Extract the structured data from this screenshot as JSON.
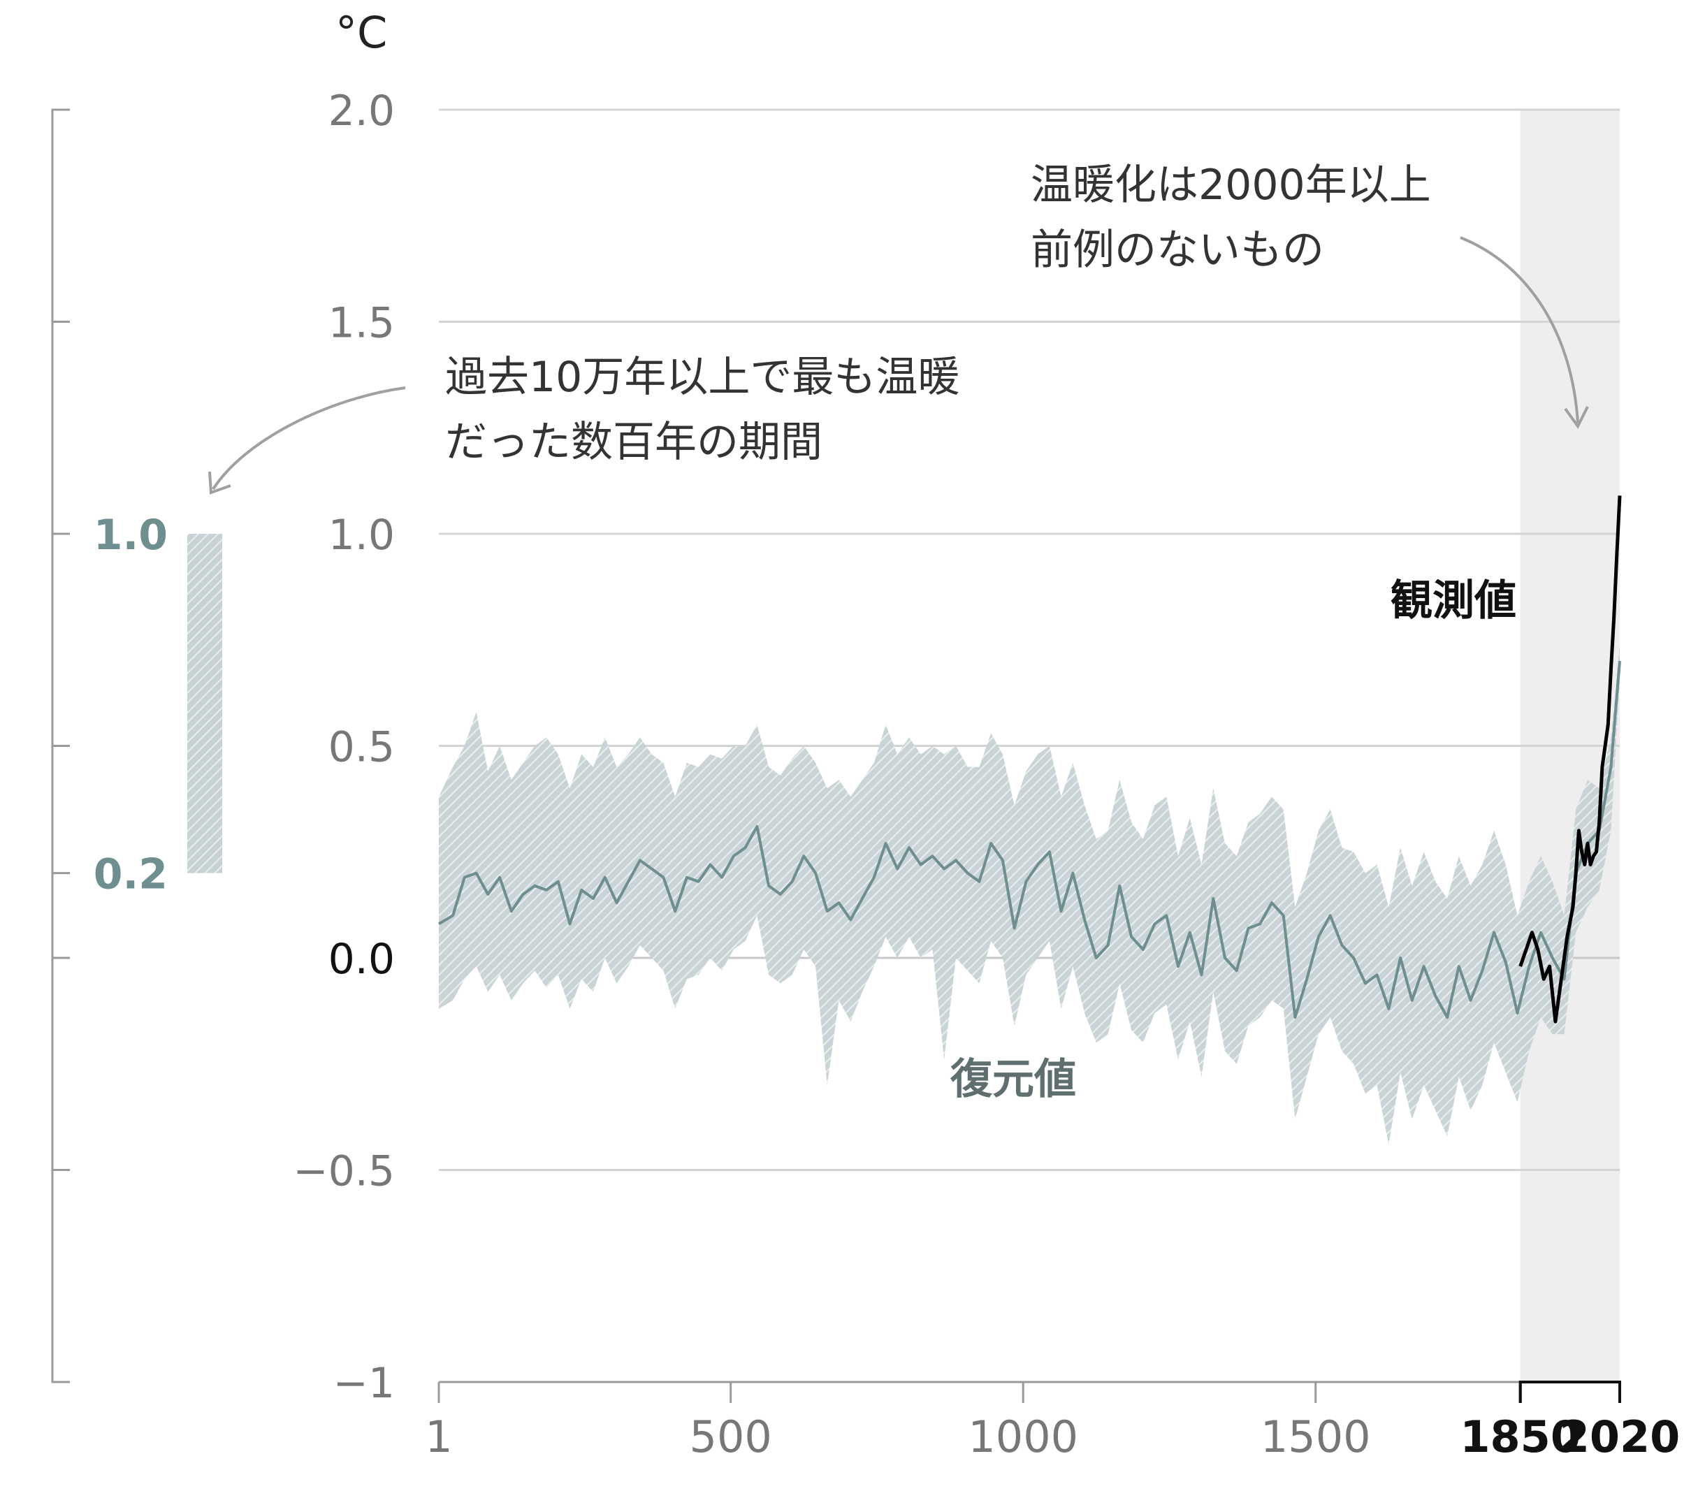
{
  "chart_data": {
    "type": "area",
    "unit_label": "°C",
    "y_ticks": [
      {
        "value": 2.0,
        "label": "2.0"
      },
      {
        "value": 1.5,
        "label": "1.5"
      },
      {
        "value": 1.0,
        "label": "1.0"
      },
      {
        "value": 0.5,
        "label": "0.5"
      },
      {
        "value": 0.0,
        "label": "0.0"
      },
      {
        "value": -0.5,
        "label": "−0.5"
      },
      {
        "value": -1.0,
        "label": "−1"
      }
    ],
    "x_ticks": [
      {
        "value": 1,
        "label": "1",
        "bold": false
      },
      {
        "value": 500,
        "label": "500",
        "bold": false
      },
      {
        "value": 1000,
        "label": "1000",
        "bold": false
      },
      {
        "value": 1500,
        "label": "1500",
        "bold": false
      },
      {
        "value": 1850,
        "label": "1850",
        "bold": true
      },
      {
        "value": 2020,
        "label": "2020",
        "bold": true
      }
    ],
    "xlim": [
      1,
      2020
    ],
    "ylim": [
      -1.0,
      2.0
    ],
    "grid": true,
    "colors": {
      "reconstruction_line": "#6e8e8f",
      "reconstruction_band": "#c2ced1",
      "band_hatch": "#a7b9bc",
      "observed_line": "#000000",
      "grid": "#d4d4d4",
      "axis": "#9a9a9a",
      "shaded_period": "#eeeeee",
      "side_bar_text": "#6e8e8f"
    },
    "shaded_period": [
      1850,
      2020
    ],
    "series": [
      {
        "name": "復元値",
        "kind": "reconstruction",
        "points": [
          [
            1,
            0.08
          ],
          [
            25,
            0.1
          ],
          [
            45,
            0.19
          ],
          [
            65,
            0.2
          ],
          [
            85,
            0.15
          ],
          [
            105,
            0.19
          ],
          [
            125,
            0.11
          ],
          [
            145,
            0.15
          ],
          [
            165,
            0.17
          ],
          [
            185,
            0.16
          ],
          [
            205,
            0.18
          ],
          [
            225,
            0.08
          ],
          [
            245,
            0.16
          ],
          [
            265,
            0.14
          ],
          [
            285,
            0.19
          ],
          [
            305,
            0.13
          ],
          [
            325,
            0.18
          ],
          [
            345,
            0.23
          ],
          [
            365,
            0.21
          ],
          [
            385,
            0.19
          ],
          [
            405,
            0.11
          ],
          [
            425,
            0.19
          ],
          [
            445,
            0.18
          ],
          [
            465,
            0.22
          ],
          [
            485,
            0.19
          ],
          [
            505,
            0.24
          ],
          [
            525,
            0.26
          ],
          [
            545,
            0.31
          ],
          [
            565,
            0.17
          ],
          [
            585,
            0.15
          ],
          [
            605,
            0.18
          ],
          [
            625,
            0.24
          ],
          [
            645,
            0.2
          ],
          [
            665,
            0.11
          ],
          [
            685,
            0.13
          ],
          [
            705,
            0.09
          ],
          [
            725,
            0.14
          ],
          [
            745,
            0.19
          ],
          [
            765,
            0.27
          ],
          [
            785,
            0.21
          ],
          [
            805,
            0.26
          ],
          [
            825,
            0.22
          ],
          [
            845,
            0.24
          ],
          [
            865,
            0.21
          ],
          [
            885,
            0.23
          ],
          [
            905,
            0.2
          ],
          [
            925,
            0.18
          ],
          [
            945,
            0.27
          ],
          [
            965,
            0.23
          ],
          [
            985,
            0.07
          ],
          [
            1005,
            0.18
          ],
          [
            1025,
            0.22
          ],
          [
            1045,
            0.25
          ],
          [
            1065,
            0.11
          ],
          [
            1085,
            0.2
          ],
          [
            1105,
            0.09
          ],
          [
            1125,
            0.0
          ],
          [
            1145,
            0.03
          ],
          [
            1165,
            0.17
          ],
          [
            1185,
            0.05
          ],
          [
            1205,
            0.02
          ],
          [
            1225,
            0.08
          ],
          [
            1245,
            0.1
          ],
          [
            1265,
            -0.02
          ],
          [
            1285,
            0.06
          ],
          [
            1305,
            -0.04
          ],
          [
            1325,
            0.14
          ],
          [
            1345,
            0.0
          ],
          [
            1365,
            -0.03
          ],
          [
            1385,
            0.07
          ],
          [
            1405,
            0.08
          ],
          [
            1425,
            0.13
          ],
          [
            1445,
            0.1
          ],
          [
            1465,
            -0.14
          ],
          [
            1485,
            -0.05
          ],
          [
            1505,
            0.05
          ],
          [
            1525,
            0.1
          ],
          [
            1545,
            0.03
          ],
          [
            1565,
            0.0
          ],
          [
            1585,
            -0.06
          ],
          [
            1605,
            -0.04
          ],
          [
            1625,
            -0.12
          ],
          [
            1645,
            0.0
          ],
          [
            1665,
            -0.1
          ],
          [
            1685,
            -0.02
          ],
          [
            1705,
            -0.09
          ],
          [
            1725,
            -0.14
          ],
          [
            1745,
            -0.02
          ],
          [
            1765,
            -0.1
          ],
          [
            1785,
            -0.03
          ],
          [
            1805,
            0.06
          ],
          [
            1825,
            -0.01
          ],
          [
            1845,
            -0.13
          ],
          [
            1865,
            -0.02
          ],
          [
            1885,
            0.06
          ],
          [
            1905,
            0.0
          ],
          [
            1925,
            -0.05
          ],
          [
            1945,
            0.2
          ],
          [
            1965,
            0.27
          ],
          [
            1985,
            0.3
          ],
          [
            2005,
            0.45
          ],
          [
            2020,
            0.7
          ]
        ],
        "band": [
          [
            1,
            -0.12,
            0.38
          ],
          [
            25,
            -0.1,
            0.45
          ],
          [
            45,
            -0.05,
            0.5
          ],
          [
            65,
            -0.02,
            0.58
          ],
          [
            85,
            -0.08,
            0.44
          ],
          [
            105,
            -0.04,
            0.5
          ],
          [
            125,
            -0.1,
            0.42
          ],
          [
            145,
            -0.06,
            0.46
          ],
          [
            165,
            -0.03,
            0.5
          ],
          [
            185,
            -0.07,
            0.52
          ],
          [
            205,
            -0.04,
            0.48
          ],
          [
            225,
            -0.12,
            0.4
          ],
          [
            245,
            -0.05,
            0.48
          ],
          [
            265,
            -0.08,
            0.45
          ],
          [
            285,
            0.0,
            0.52
          ],
          [
            305,
            -0.06,
            0.45
          ],
          [
            325,
            -0.02,
            0.48
          ],
          [
            345,
            0.03,
            0.52
          ],
          [
            365,
            0.0,
            0.48
          ],
          [
            385,
            -0.03,
            0.46
          ],
          [
            405,
            -0.12,
            0.38
          ],
          [
            425,
            -0.05,
            0.46
          ],
          [
            445,
            -0.04,
            0.45
          ],
          [
            465,
            0.0,
            0.48
          ],
          [
            485,
            -0.03,
            0.47
          ],
          [
            505,
            0.02,
            0.5
          ],
          [
            525,
            0.04,
            0.5
          ],
          [
            545,
            0.1,
            0.55
          ],
          [
            565,
            -0.04,
            0.45
          ],
          [
            585,
            -0.06,
            0.43
          ],
          [
            605,
            -0.04,
            0.47
          ],
          [
            625,
            0.02,
            0.5
          ],
          [
            645,
            -0.02,
            0.46
          ],
          [
            665,
            -0.3,
            0.4
          ],
          [
            685,
            -0.1,
            0.42
          ],
          [
            705,
            -0.15,
            0.38
          ],
          [
            725,
            -0.08,
            0.42
          ],
          [
            745,
            -0.02,
            0.46
          ],
          [
            765,
            0.05,
            0.55
          ],
          [
            785,
            0.0,
            0.48
          ],
          [
            805,
            0.05,
            0.52
          ],
          [
            825,
            0.0,
            0.48
          ],
          [
            845,
            0.02,
            0.5
          ],
          [
            865,
            -0.24,
            0.48
          ],
          [
            885,
            0.0,
            0.5
          ],
          [
            905,
            -0.03,
            0.45
          ],
          [
            925,
            -0.06,
            0.45
          ],
          [
            945,
            0.04,
            0.53
          ],
          [
            965,
            0.0,
            0.48
          ],
          [
            985,
            -0.16,
            0.36
          ],
          [
            1005,
            -0.04,
            0.44
          ],
          [
            1025,
            0.0,
            0.48
          ],
          [
            1045,
            0.04,
            0.5
          ],
          [
            1065,
            -0.12,
            0.38
          ],
          [
            1085,
            -0.02,
            0.46
          ],
          [
            1105,
            -0.13,
            0.36
          ],
          [
            1125,
            -0.2,
            0.28
          ],
          [
            1145,
            -0.18,
            0.3
          ],
          [
            1165,
            -0.06,
            0.42
          ],
          [
            1185,
            -0.17,
            0.32
          ],
          [
            1205,
            -0.2,
            0.28
          ],
          [
            1225,
            -0.13,
            0.36
          ],
          [
            1245,
            -0.11,
            0.38
          ],
          [
            1265,
            -0.24,
            0.24
          ],
          [
            1285,
            -0.15,
            0.33
          ],
          [
            1305,
            -0.28,
            0.22
          ],
          [
            1325,
            -0.08,
            0.4
          ],
          [
            1345,
            -0.22,
            0.27
          ],
          [
            1365,
            -0.25,
            0.24
          ],
          [
            1385,
            -0.16,
            0.32
          ],
          [
            1405,
            -0.14,
            0.34
          ],
          [
            1425,
            -0.1,
            0.38
          ],
          [
            1445,
            -0.12,
            0.35
          ],
          [
            1465,
            -0.38,
            0.12
          ],
          [
            1485,
            -0.28,
            0.2
          ],
          [
            1505,
            -0.18,
            0.3
          ],
          [
            1525,
            -0.14,
            0.35
          ],
          [
            1545,
            -0.22,
            0.26
          ],
          [
            1565,
            -0.25,
            0.25
          ],
          [
            1585,
            -0.32,
            0.2
          ],
          [
            1605,
            -0.3,
            0.22
          ],
          [
            1625,
            -0.44,
            0.12
          ],
          [
            1645,
            -0.27,
            0.26
          ],
          [
            1665,
            -0.38,
            0.17
          ],
          [
            1685,
            -0.3,
            0.25
          ],
          [
            1705,
            -0.36,
            0.18
          ],
          [
            1725,
            -0.42,
            0.14
          ],
          [
            1745,
            -0.28,
            0.24
          ],
          [
            1765,
            -0.36,
            0.17
          ],
          [
            1785,
            -0.3,
            0.22
          ],
          [
            1805,
            -0.2,
            0.3
          ],
          [
            1825,
            -0.27,
            0.22
          ],
          [
            1845,
            -0.34,
            0.1
          ],
          [
            1865,
            -0.22,
            0.18
          ],
          [
            1885,
            -0.14,
            0.24
          ],
          [
            1905,
            -0.18,
            0.18
          ],
          [
            1925,
            -0.18,
            0.1
          ],
          [
            1945,
            0.06,
            0.35
          ],
          [
            1965,
            0.12,
            0.42
          ],
          [
            1985,
            0.16,
            0.4
          ],
          [
            2005,
            0.3,
            0.52
          ],
          [
            2020,
            0.66,
            0.74
          ]
        ]
      },
      {
        "name": "観測値",
        "kind": "observed",
        "points": [
          [
            1850,
            -0.02
          ],
          [
            1860,
            0.02
          ],
          [
            1870,
            0.06
          ],
          [
            1880,
            0.02
          ],
          [
            1890,
            -0.05
          ],
          [
            1900,
            -0.02
          ],
          [
            1910,
            -0.15
          ],
          [
            1920,
            -0.05
          ],
          [
            1930,
            0.05
          ],
          [
            1940,
            0.12
          ],
          [
            1945,
            0.2
          ],
          [
            1950,
            0.3
          ],
          [
            1955,
            0.25
          ],
          [
            1960,
            0.22
          ],
          [
            1965,
            0.27
          ],
          [
            1970,
            0.22
          ],
          [
            1975,
            0.24
          ],
          [
            1980,
            0.25
          ],
          [
            1985,
            0.32
          ],
          [
            1990,
            0.45
          ],
          [
            1995,
            0.5
          ],
          [
            2000,
            0.55
          ],
          [
            2005,
            0.68
          ],
          [
            2010,
            0.8
          ],
          [
            2015,
            0.95
          ],
          [
            2020,
            1.09
          ]
        ]
      }
    ],
    "side_bar": {
      "low": 0.2,
      "high": 1.0,
      "low_label": "0.2",
      "high_label": "1.0"
    },
    "annotations": {
      "recent_warming": "温暖化は2000年以上前例のないもの",
      "past_warm_period": "過去10万年以上で最も温暖だった数百年の期間",
      "observed_label": "観測値",
      "reconstructed_label": "復元値"
    }
  }
}
